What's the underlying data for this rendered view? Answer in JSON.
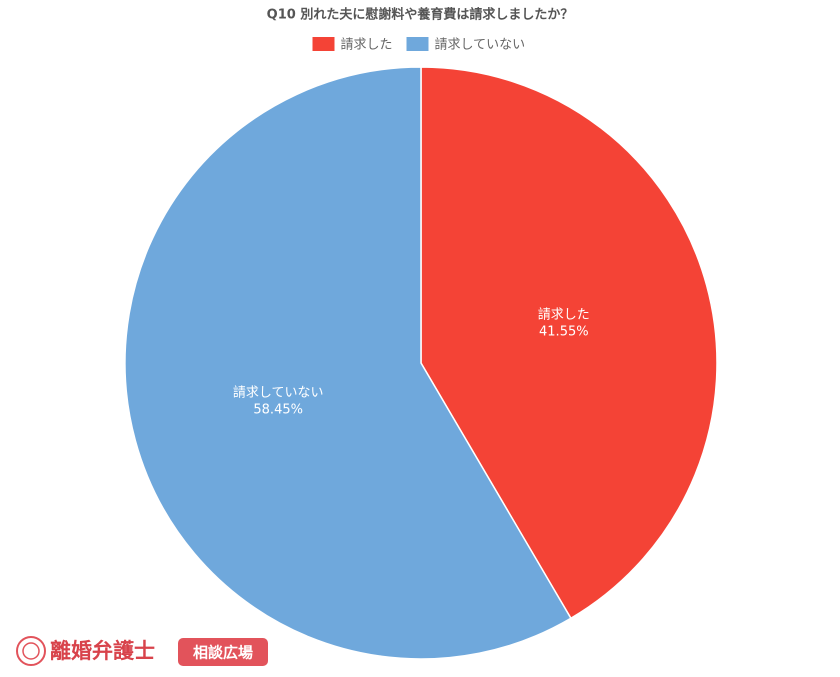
{
  "chart_data": {
    "type": "pie",
    "title": "Q10 別れた夫に慰謝料や養育費は請求しましたか？",
    "categories": [
      "請求した",
      "請求していない"
    ],
    "values": [
      41.55,
      58.45
    ],
    "value_labels": [
      "41.55%",
      "58.45%"
    ],
    "colors": [
      "#f44336",
      "#6fa8dc"
    ],
    "legend": "top"
  },
  "branding": {
    "name": "離婚弁護士",
    "badge": "相談広場"
  }
}
